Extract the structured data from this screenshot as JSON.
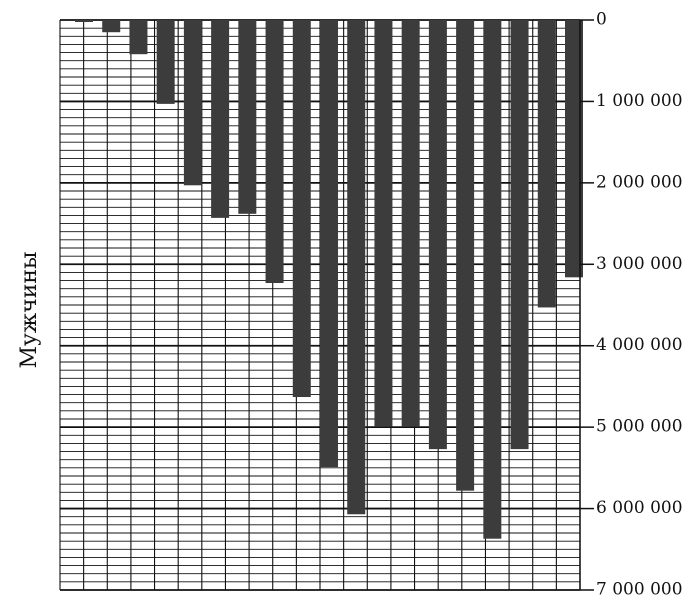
{
  "chart_data": {
    "type": "bar",
    "orientation": "vertical-inverted",
    "ylabel": "Мужчины",
    "ylim": [
      0,
      7000000
    ],
    "y_inverted": true,
    "y_axis_position": "right",
    "yticks": [
      0,
      1000000,
      2000000,
      3000000,
      4000000,
      5000000,
      6000000,
      7000000
    ],
    "ytick_labels": [
      "0",
      "1 000 000",
      "2 000 000",
      "3 000 000",
      "4 000 000",
      "5 000 000",
      "6 000 000",
      "7 000 000"
    ],
    "grid": true,
    "bar_color": "#3c3c3c",
    "values": [
      20000,
      150000,
      420000,
      1030000,
      2030000,
      2430000,
      2380000,
      3230000,
      4630000,
      5490000,
      6070000,
      4990000,
      4990000,
      5270000,
      5780000,
      6370000,
      5270000,
      3530000,
      3160000
    ]
  }
}
